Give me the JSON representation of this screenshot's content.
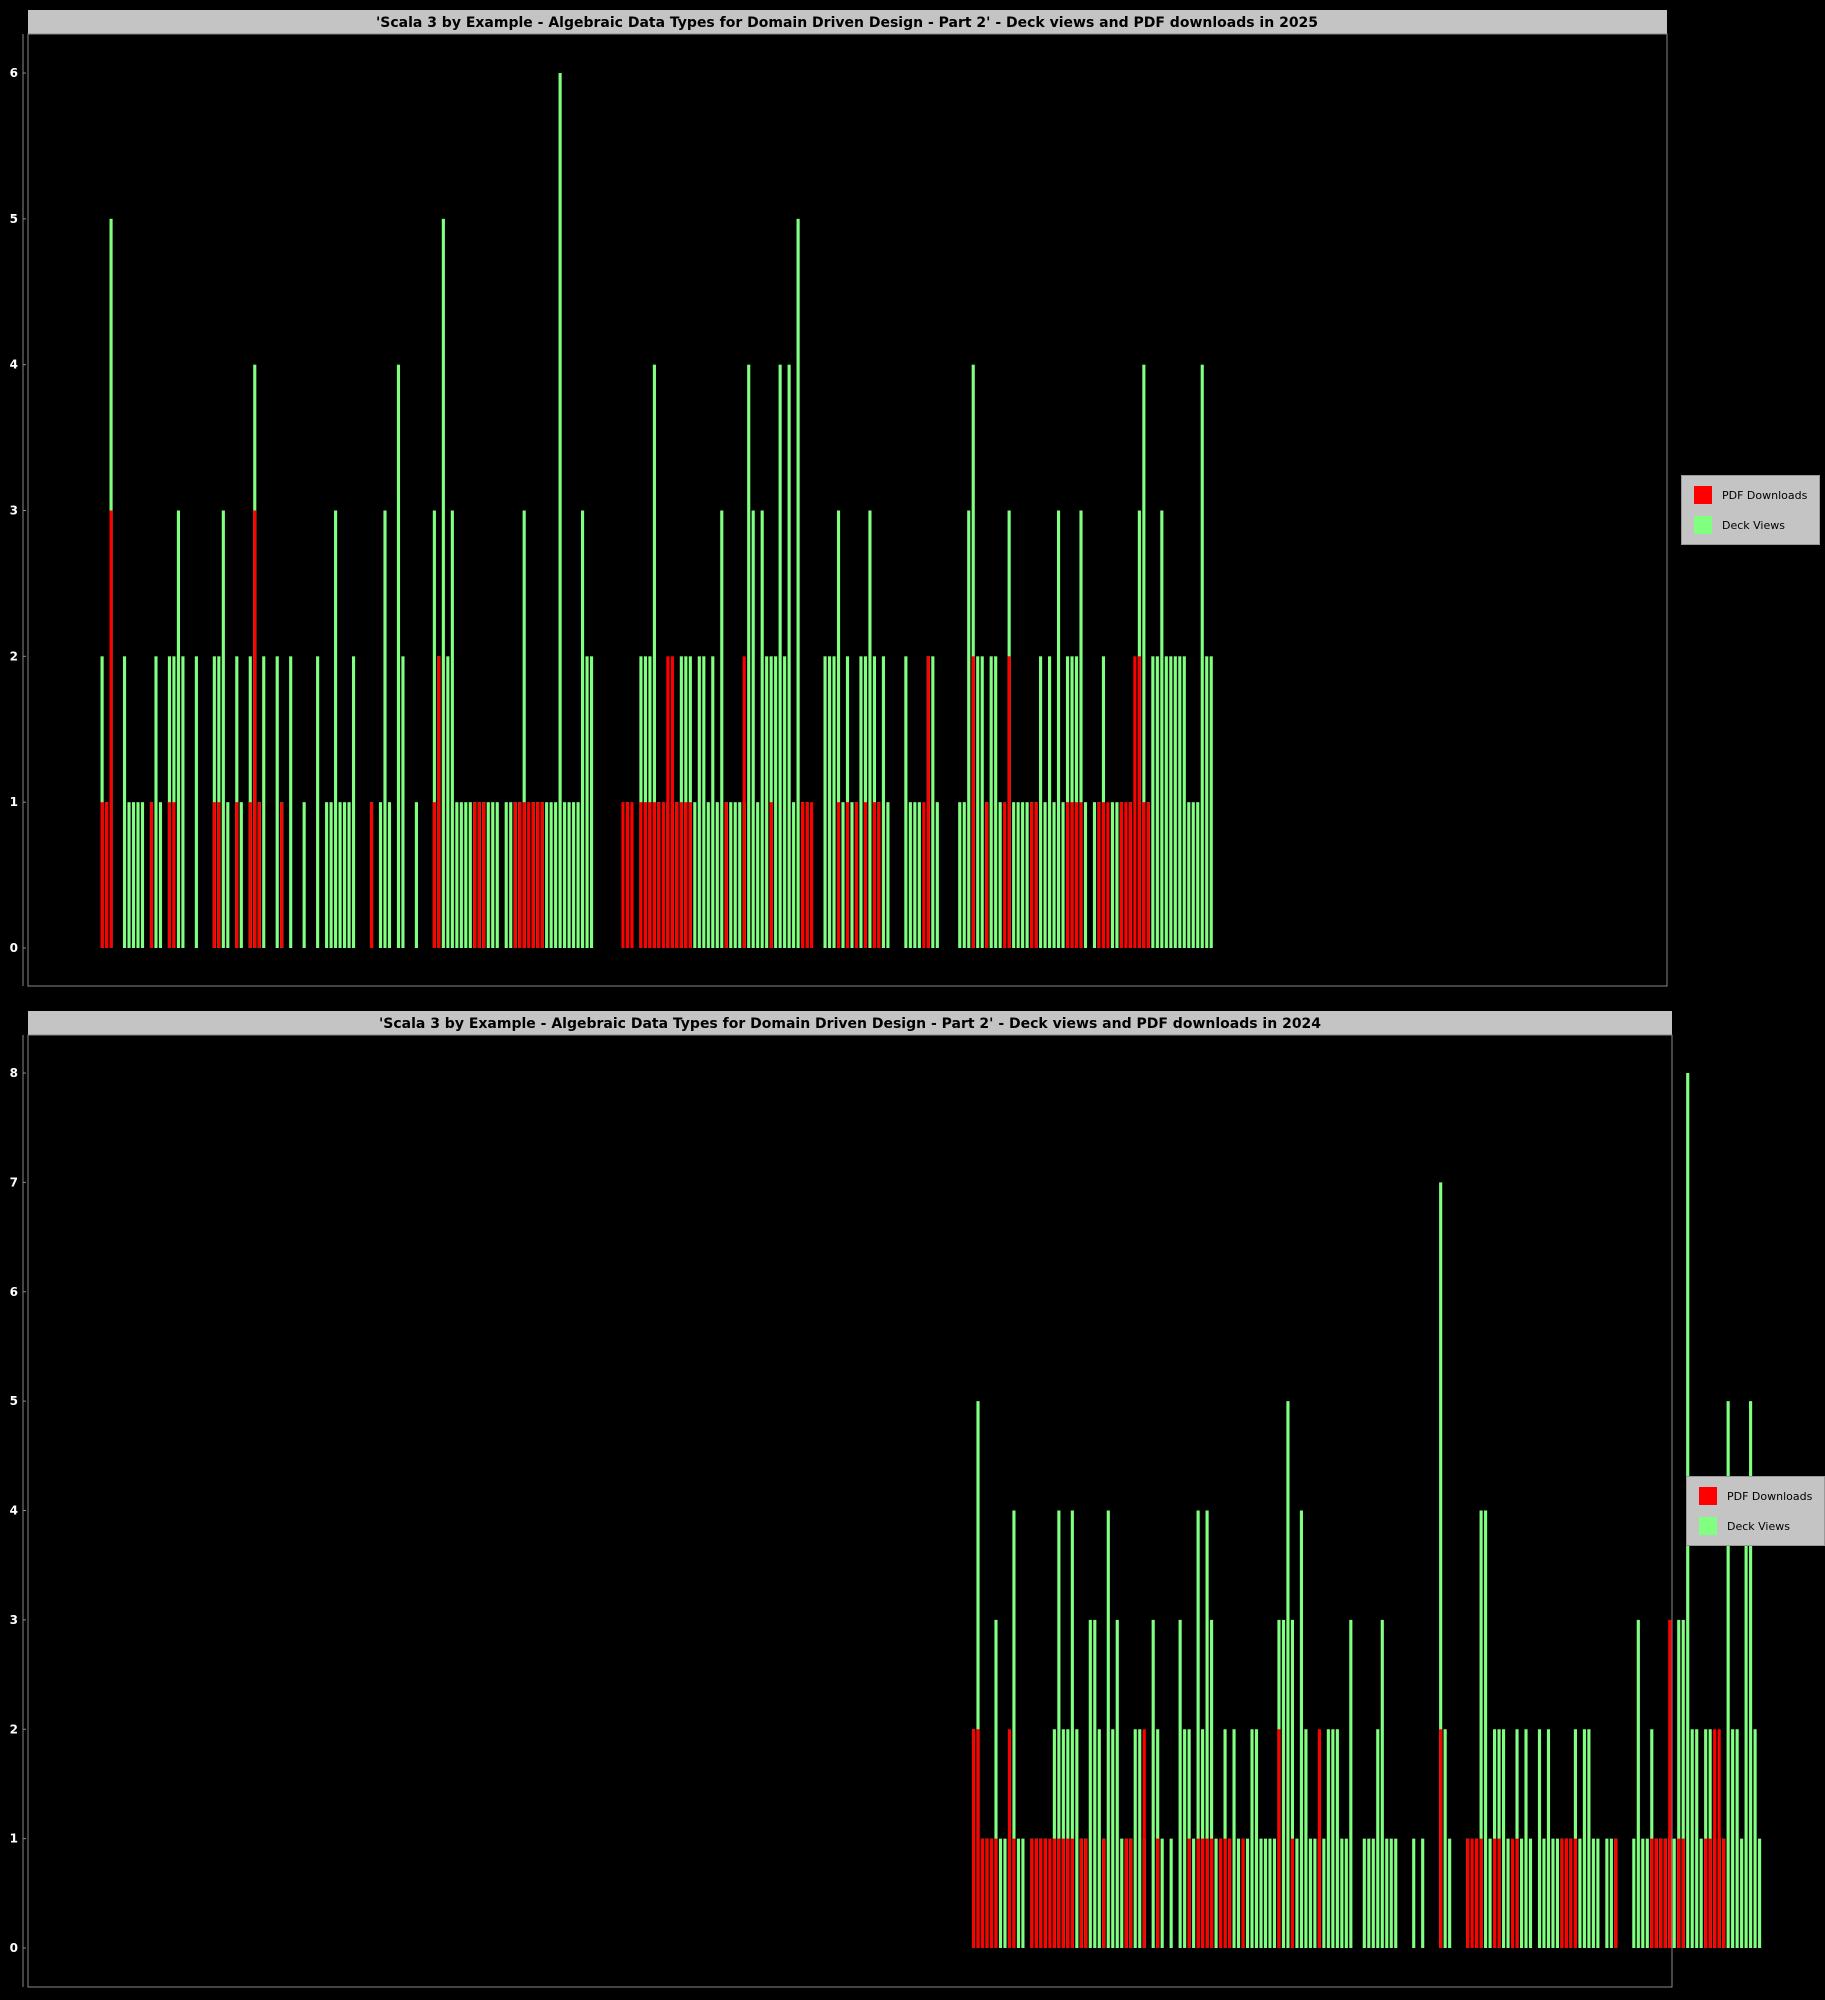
{
  "colors": {
    "pdf": "#ff0000",
    "views": "#80ff80",
    "background": "#000000",
    "title_bar": "#c4c4c4"
  },
  "legend": {
    "pdf_label": "PDF Downloads",
    "views_label": "Deck Views"
  },
  "chart_data": [
    {
      "type": "bar",
      "stacked": false,
      "title": "'Scala 3 by Example - Algebraic Data Types for Domain Driven Design - Part 2' - Deck views and PDF downloads in 2025",
      "ylim": [
        0,
        6
      ],
      "yticks": [
        0,
        1,
        2,
        3,
        4,
        5,
        6
      ],
      "legend_position": "right",
      "x": {
        "count": 365,
        "first_index": 16
      },
      "series": [
        {
          "name": "Deck Views",
          "color": "#80ff80",
          "values": [
            2,
            1,
            5,
            0,
            0,
            2,
            1,
            1,
            1,
            1,
            0,
            1,
            2,
            1,
            0,
            2,
            2,
            3,
            2,
            0,
            0,
            2,
            0,
            0,
            0,
            2,
            2,
            3,
            1,
            0,
            2,
            1,
            0,
            2,
            4,
            1,
            2,
            0,
            0,
            2,
            1,
            0,
            2,
            0,
            0,
            1,
            0,
            0,
            2,
            0,
            1,
            1,
            3,
            1,
            1,
            1,
            2,
            0,
            0,
            0,
            1,
            0,
            1,
            3,
            1,
            0,
            4,
            2,
            0,
            0,
            1,
            0,
            0,
            0,
            3,
            2,
            5,
            2,
            3,
            1,
            1,
            1,
            1,
            1,
            1,
            1,
            1,
            1,
            1,
            0,
            1,
            1,
            1,
            1,
            3,
            0,
            1,
            1,
            1,
            1,
            1,
            1,
            6,
            1,
            1,
            1,
            1,
            3,
            2,
            2,
            0,
            0,
            0,
            0,
            0,
            0,
            0,
            1,
            0,
            0,
            2,
            2,
            2,
            4,
            1,
            0,
            1,
            1,
            1,
            2,
            2,
            2,
            1,
            2,
            2,
            1,
            2,
            1,
            3,
            1,
            1,
            1,
            1,
            1,
            4,
            3,
            1,
            3,
            2,
            2,
            2,
            4,
            2,
            4,
            1,
            5,
            1,
            1,
            0,
            0,
            0,
            2,
            2,
            2,
            3,
            1,
            2,
            1,
            1,
            2,
            2,
            3,
            2,
            1,
            2,
            1,
            0,
            0,
            0,
            2,
            1,
            1,
            1,
            0,
            2,
            2,
            1,
            0,
            0,
            0,
            0,
            1,
            1,
            3,
            4,
            2,
            2,
            1,
            2,
            2,
            1,
            0,
            3,
            1,
            1,
            1,
            1,
            1,
            1,
            2,
            1,
            2,
            1,
            3,
            1,
            2,
            2,
            2,
            3,
            1,
            0,
            1,
            1,
            2,
            0,
            1,
            1,
            1,
            0,
            1,
            0,
            3,
            4,
            1,
            2,
            2,
            3,
            2,
            2,
            2,
            2,
            2,
            1,
            1,
            1,
            4,
            2,
            2
          ]
        },
        {
          "name": "PDF Downloads",
          "color": "#ff0000",
          "values": [
            1,
            1,
            3,
            0,
            0,
            0,
            0,
            0,
            0,
            0,
            0,
            1,
            0,
            0,
            0,
            1,
            1,
            0,
            0,
            0,
            0,
            0,
            0,
            0,
            0,
            1,
            1,
            0,
            0,
            0,
            1,
            0,
            0,
            1,
            3,
            1,
            0,
            0,
            0,
            0,
            1,
            0,
            0,
            0,
            0,
            0,
            0,
            0,
            0,
            0,
            0,
            0,
            0,
            0,
            0,
            0,
            0,
            0,
            0,
            0,
            1,
            0,
            0,
            0,
            0,
            0,
            0,
            0,
            0,
            0,
            0,
            0,
            0,
            0,
            1,
            2,
            0,
            0,
            0,
            0,
            0,
            0,
            0,
            1,
            1,
            1,
            0,
            0,
            0,
            0,
            0,
            0,
            1,
            1,
            1,
            1,
            1,
            1,
            1,
            0,
            0,
            0,
            0,
            0,
            0,
            0,
            0,
            0,
            0,
            0,
            0,
            0,
            0,
            0,
            0,
            0,
            1,
            1,
            1,
            0,
            1,
            1,
            1,
            1,
            1,
            1,
            2,
            2,
            1,
            1,
            1,
            1,
            0,
            0,
            0,
            0,
            0,
            0,
            0,
            1,
            0,
            0,
            0,
            2,
            0,
            0,
            0,
            0,
            0,
            1,
            0,
            0,
            0,
            0,
            0,
            0,
            1,
            1,
            1,
            0,
            0,
            0,
            0,
            0,
            1,
            0,
            1,
            0,
            1,
            0,
            1,
            0,
            1,
            1,
            0,
            0,
            0,
            0,
            0,
            0,
            0,
            0,
            0,
            1,
            2,
            0,
            0,
            0,
            0,
            0,
            0,
            0,
            0,
            0,
            2,
            0,
            0,
            1,
            0,
            0,
            0,
            1,
            2,
            0,
            0,
            0,
            0,
            1,
            1,
            0,
            0,
            0,
            0,
            0,
            0,
            1,
            1,
            1,
            1,
            0,
            0,
            0,
            1,
            1,
            1,
            0,
            0,
            1,
            1,
            1,
            2,
            2,
            1,
            1
          ]
        }
      ]
    },
    {
      "type": "bar",
      "stacked": false,
      "title": "'Scala 3 by Example - Algebraic Data Types for Domain Driven Design - Part 2' - Deck views and PDF downloads in 2024",
      "ylim": [
        0,
        8
      ],
      "yticks": [
        0,
        1,
        2,
        3,
        4,
        5,
        6,
        7,
        8
      ],
      "legend_position": "right",
      "x": {
        "count": 366,
        "first_index": 210
      },
      "series": [
        {
          "name": "Deck Views",
          "color": "#80ff80",
          "values": [
            2,
            5,
            1,
            1,
            1,
            3,
            1,
            1,
            1,
            4,
            1,
            1,
            0,
            1,
            1,
            1,
            1,
            0,
            2,
            4,
            2,
            2,
            4,
            2,
            1,
            1,
            3,
            3,
            2,
            1,
            4,
            2,
            3,
            1,
            1,
            1,
            2,
            2,
            1,
            0,
            3,
            2,
            1,
            0,
            1,
            0,
            3,
            2,
            2,
            1,
            4,
            2,
            4,
            3,
            1,
            1,
            2,
            1,
            2,
            1,
            1,
            1,
            2,
            2,
            1,
            1,
            1,
            1,
            3,
            3,
            5,
            3,
            1,
            4,
            2,
            1,
            1,
            1,
            1,
            2,
            2,
            2,
            1,
            1,
            3,
            0,
            0,
            1,
            1,
            1,
            2,
            3,
            1,
            1,
            1,
            0,
            0,
            0,
            1,
            0,
            1,
            0,
            0,
            0,
            7,
            2,
            1,
            0,
            0,
            0,
            1,
            0,
            1,
            4,
            4,
            1,
            2,
            2,
            2,
            1,
            0,
            2,
            1,
            2,
            1,
            0,
            2,
            1,
            2,
            1,
            1,
            1,
            1,
            1,
            2,
            1,
            2,
            2,
            1,
            1,
            0,
            1,
            1,
            1,
            0,
            0,
            0,
            1,
            3,
            1,
            1,
            2,
            1,
            1,
            1,
            1,
            1,
            3,
            3,
            8,
            2,
            2,
            1,
            2,
            2,
            1,
            1,
            1,
            5,
            2,
            2,
            1,
            4,
            5,
            2,
            1
          ]
        },
        {
          "name": "PDF Downloads",
          "color": "#ff0000",
          "values": [
            2,
            2,
            1,
            1,
            1,
            1,
            0,
            0,
            2,
            1,
            0,
            0,
            0,
            1,
            1,
            1,
            1,
            1,
            1,
            1,
            1,
            1,
            1,
            0,
            1,
            1,
            0,
            0,
            0,
            1,
            0,
            0,
            0,
            0,
            1,
            1,
            0,
            0,
            2,
            0,
            0,
            1,
            0,
            0,
            0,
            0,
            0,
            0,
            1,
            0,
            1,
            1,
            1,
            1,
            0,
            1,
            1,
            1,
            0,
            0,
            1,
            0,
            0,
            0,
            0,
            0,
            0,
            0,
            2,
            0,
            0,
            1,
            0,
            0,
            0,
            0,
            0,
            2,
            0,
            0,
            0,
            0,
            0,
            0,
            0,
            0,
            0,
            0,
            0,
            0,
            0,
            0,
            0,
            0,
            0,
            0,
            0,
            0,
            0,
            0,
            0,
            0,
            0,
            0,
            2,
            0,
            0,
            0,
            0,
            0,
            1,
            1,
            1,
            1,
            0,
            0,
            1,
            1,
            0,
            0,
            1,
            1,
            0,
            0,
            0,
            0,
            0,
            0,
            0,
            0,
            0,
            1,
            1,
            1,
            1,
            0,
            0,
            0,
            0,
            0,
            0,
            0,
            0,
            1,
            0,
            0,
            0,
            0,
            0,
            0,
            0,
            1,
            1,
            1,
            1,
            3,
            0,
            1,
            1,
            0,
            0,
            0,
            0,
            1,
            1,
            2,
            2,
            1,
            0,
            0,
            0,
            0,
            0,
            0,
            0,
            0
          ]
        }
      ]
    }
  ]
}
